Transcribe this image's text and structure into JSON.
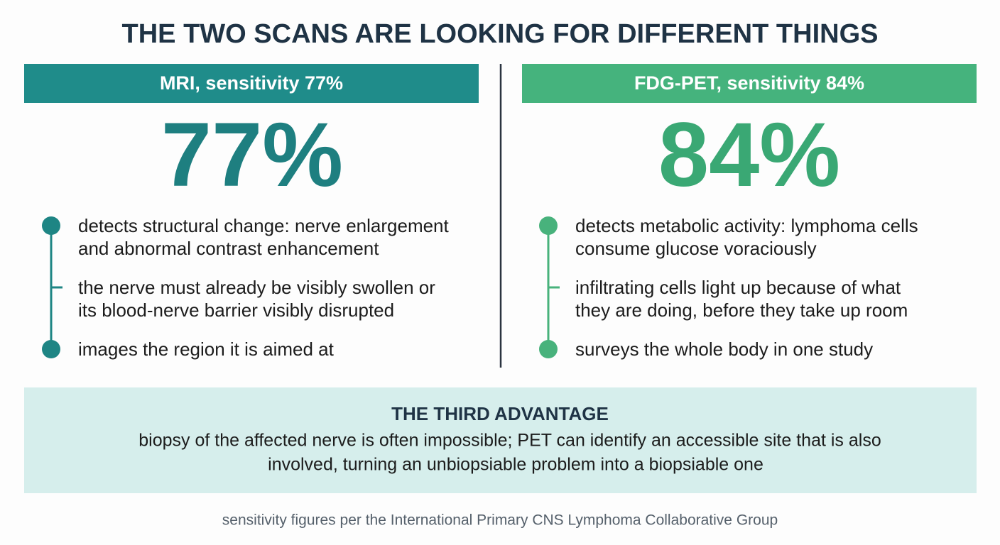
{
  "title": "THE TWO SCANS ARE LOOKING FOR DIFFERENT THINGS",
  "panels": [
    {
      "header": "MRI, sensitivity 77%",
      "figure": "77%",
      "points": [
        {
          "lines": [
            "detects structural change: nerve enlargement",
            "and abnormal contrast enhancement"
          ]
        },
        {
          "lines": [
            "the nerve must already be visibly swollen or",
            "its blood-nerve barrier visibly disrupted"
          ]
        },
        {
          "lines": [
            "images the region it is aimed at"
          ]
        }
      ]
    },
    {
      "header": "FDG-PET, sensitivity 84%",
      "figure": "84%",
      "points": [
        {
          "lines": [
            "detects metabolic activity: lymphoma cells",
            "consume glucose voraciously"
          ]
        },
        {
          "lines": [
            "infiltrating cells light up because of what",
            "they are doing, before they take up room"
          ]
        },
        {
          "lines": [
            "surveys the whole body in one study"
          ]
        }
      ]
    }
  ],
  "callout": {
    "heading": "THE THIRD ADVANTAGE",
    "lines": [
      "biopsy of the affected nerve is often impossible; PET can identify an accessible site that is also",
      "involved, turning an unbiopsiable problem into a biopsiable one"
    ]
  },
  "footer": "sensitivity figures per the International Primary CNS Lymphoma Collaborative Group"
}
